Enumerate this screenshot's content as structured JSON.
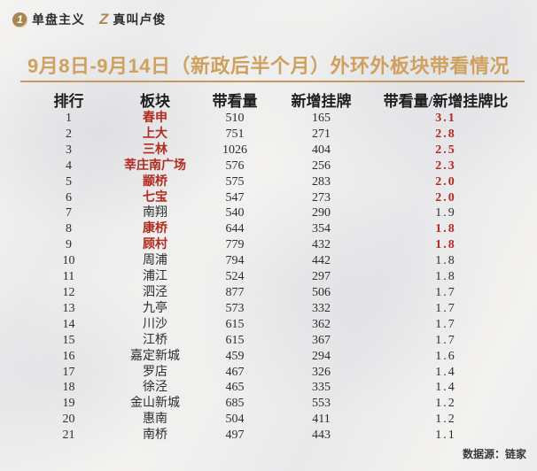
{
  "brand": {
    "logo1": {
      "icon": "circled-1-icon",
      "icon_glyph": "1",
      "label": "单盘主义"
    },
    "logo2": {
      "icon": "z-icon",
      "icon_glyph": "Z",
      "label": "真叫卢俊"
    }
  },
  "title": "9月8日-9月14日（新政后半个月）外环外板块带看情况",
  "footer": {
    "source_label": "数据源：链家"
  },
  "colors": {
    "accent_gold": "#cfa15e",
    "line_gold": "#c49a5f",
    "brand_gold": "#a8864d",
    "highlight_red": "#b22a20",
    "text_dark": "#2d2d2d"
  },
  "chart_data": {
    "type": "table",
    "title": "9月8日-9月14日（新政后半个月）外环外板块带看情况",
    "columns": [
      "排行",
      "板块",
      "带看量",
      "新增挂牌",
      "带看量/新增挂牌比"
    ],
    "rows": [
      {
        "rank": "1",
        "area": "春申",
        "viewings": "510",
        "new_listings": "165",
        "ratio": "3.1",
        "highlight": true
      },
      {
        "rank": "2",
        "area": "上大",
        "viewings": "751",
        "new_listings": "271",
        "ratio": "2.8",
        "highlight": true
      },
      {
        "rank": "3",
        "area": "三林",
        "viewings": "1026",
        "new_listings": "404",
        "ratio": "2.5",
        "highlight": true
      },
      {
        "rank": "4",
        "area": "莘庄南广场",
        "viewings": "576",
        "new_listings": "256",
        "ratio": "2.3",
        "highlight": true
      },
      {
        "rank": "5",
        "area": "颛桥",
        "viewings": "575",
        "new_listings": "283",
        "ratio": "2.0",
        "highlight": true
      },
      {
        "rank": "6",
        "area": "七宝",
        "viewings": "547",
        "new_listings": "273",
        "ratio": "2.0",
        "highlight": true
      },
      {
        "rank": "7",
        "area": "南翔",
        "viewings": "540",
        "new_listings": "290",
        "ratio": "1.9",
        "highlight": false
      },
      {
        "rank": "8",
        "area": "康桥",
        "viewings": "644",
        "new_listings": "354",
        "ratio": "1.8",
        "highlight": true
      },
      {
        "rank": "9",
        "area": "顾村",
        "viewings": "779",
        "new_listings": "432",
        "ratio": "1.8",
        "highlight": true
      },
      {
        "rank": "10",
        "area": "周浦",
        "viewings": "794",
        "new_listings": "442",
        "ratio": "1.8",
        "highlight": false
      },
      {
        "rank": "11",
        "area": "浦江",
        "viewings": "524",
        "new_listings": "297",
        "ratio": "1.8",
        "highlight": false
      },
      {
        "rank": "12",
        "area": "泗泾",
        "viewings": "877",
        "new_listings": "506",
        "ratio": "1.7",
        "highlight": false
      },
      {
        "rank": "13",
        "area": "九亭",
        "viewings": "573",
        "new_listings": "332",
        "ratio": "1.7",
        "highlight": false
      },
      {
        "rank": "14",
        "area": "川沙",
        "viewings": "615",
        "new_listings": "362",
        "ratio": "1.7",
        "highlight": false
      },
      {
        "rank": "15",
        "area": "江桥",
        "viewings": "615",
        "new_listings": "367",
        "ratio": "1.7",
        "highlight": false
      },
      {
        "rank": "16",
        "area": "嘉定新城",
        "viewings": "459",
        "new_listings": "294",
        "ratio": "1.6",
        "highlight": false
      },
      {
        "rank": "17",
        "area": "罗店",
        "viewings": "467",
        "new_listings": "326",
        "ratio": "1.4",
        "highlight": false
      },
      {
        "rank": "18",
        "area": "徐泾",
        "viewings": "465",
        "new_listings": "335",
        "ratio": "1.4",
        "highlight": false
      },
      {
        "rank": "19",
        "area": "金山新城",
        "viewings": "685",
        "new_listings": "553",
        "ratio": "1.2",
        "highlight": false
      },
      {
        "rank": "20",
        "area": "惠南",
        "viewings": "504",
        "new_listings": "411",
        "ratio": "1.2",
        "highlight": false
      },
      {
        "rank": "21",
        "area": "南桥",
        "viewings": "497",
        "new_listings": "443",
        "ratio": "1.1",
        "highlight": false
      }
    ]
  }
}
